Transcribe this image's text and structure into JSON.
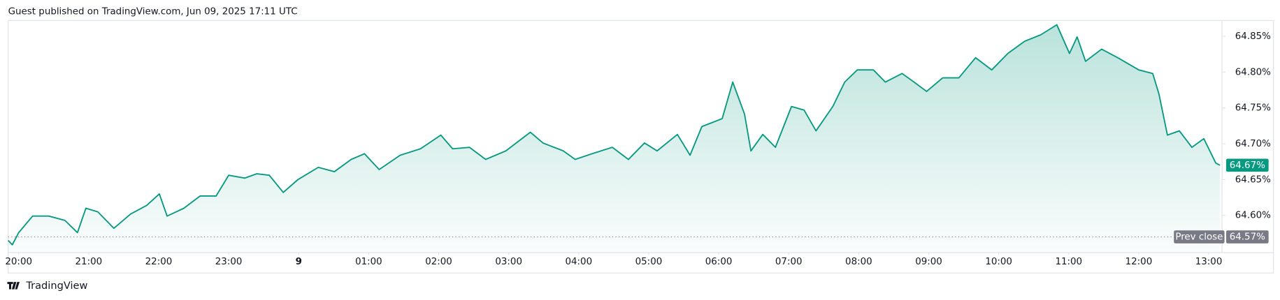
{
  "header": "Guest published on TradingView.com, Jun 09, 2025 17:11 UTC",
  "brand": "TradingView",
  "chart_data": {
    "type": "line",
    "series": [
      {
        "color": "#089981",
        "x": [
          -0.15,
          -0.09,
          0,
          0.2,
          0.43,
          0.66,
          0.84,
          0.96,
          1.13,
          1.36,
          1.6,
          1.83,
          2.01,
          2.12,
          2.36,
          2.59,
          2.82,
          3.0,
          3.23,
          3.4,
          3.58,
          3.78,
          3.99,
          4.28,
          4.51,
          4.75,
          4.94,
          5.15,
          5.45,
          5.74,
          6.03,
          6.2,
          6.44,
          6.67,
          6.96,
          7.31,
          7.49,
          7.78,
          7.95,
          8.19,
          8.48,
          8.71,
          8.94,
          9.12,
          9.41,
          9.59,
          9.76,
          10.05,
          10.2,
          10.37,
          10.46,
          10.63,
          10.81,
          11.04,
          11.22,
          11.39,
          11.63,
          11.8,
          11.98,
          12.21,
          12.38,
          12.62,
          12.79,
          12.97,
          13.2,
          13.43,
          13.67,
          13.9,
          14.13,
          14.37,
          14.6,
          14.83,
          15.01,
          15.12,
          15.24,
          15.47,
          15.7,
          16.0,
          16.2,
          16.29,
          16.41,
          16.58,
          16.76,
          16.93,
          17.1,
          17.16
        ],
        "values": [
          64.565,
          64.559,
          64.576,
          64.599,
          64.599,
          64.593,
          64.576,
          64.61,
          64.605,
          64.582,
          64.602,
          64.614,
          64.63,
          64.599,
          64.61,
          64.627,
          64.627,
          64.656,
          64.652,
          64.658,
          64.656,
          64.632,
          64.65,
          64.667,
          64.661,
          64.678,
          64.686,
          64.664,
          64.684,
          64.693,
          64.712,
          64.693,
          64.695,
          64.678,
          64.69,
          64.716,
          64.701,
          64.69,
          64.678,
          64.686,
          64.695,
          64.678,
          64.701,
          64.69,
          64.713,
          64.684,
          64.724,
          64.735,
          64.786,
          64.741,
          64.69,
          64.713,
          64.695,
          64.752,
          64.747,
          64.718,
          64.752,
          64.786,
          64.803,
          64.803,
          64.786,
          64.798,
          64.786,
          64.773,
          64.792,
          64.792,
          64.82,
          64.803,
          64.826,
          64.843,
          64.852,
          64.866,
          64.826,
          64.849,
          64.815,
          64.832,
          64.82,
          64.803,
          64.798,
          64.769,
          64.712,
          64.718,
          64.695,
          64.707,
          64.673,
          64.67
        ]
      }
    ],
    "xlim": [
      -0.15,
      17.19
    ],
    "xticks": [
      {
        "value": 0,
        "label": "20:00"
      },
      {
        "value": 1,
        "label": "21:00"
      },
      {
        "value": 2,
        "label": "22:00"
      },
      {
        "value": 3,
        "label": "23:00"
      },
      4,
      {
        "value": 5,
        "label": "01:00"
      },
      {
        "value": 6,
        "label": "02:00"
      },
      {
        "value": 7,
        "label": "03:00"
      },
      {
        "value": 8,
        "label": "04:00"
      },
      {
        "value": 9,
        "label": "05:00"
      },
      {
        "value": 10,
        "label": "06:00"
      },
      {
        "value": 11,
        "label": "07:00"
      },
      {
        "value": 12,
        "label": "08:00"
      },
      {
        "value": 13,
        "label": "09:00"
      },
      {
        "value": 14,
        "label": "10:00"
      },
      {
        "value": 15,
        "label": "11:00"
      },
      {
        "value": 16,
        "label": "12:00"
      },
      {
        "value": 17,
        "label": "13:00"
      }
    ],
    "day_tick_label": "9",
    "ylim": [
      64.548,
      64.872
    ],
    "yticks": [
      {
        "value": 64.6,
        "label": "64.60%"
      },
      {
        "value": 64.65,
        "label": "64.65%"
      },
      {
        "value": 64.7,
        "label": "64.70%"
      },
      {
        "value": 64.75,
        "label": "64.75%"
      },
      {
        "value": 64.8,
        "label": "64.80%"
      },
      {
        "value": 64.85,
        "label": "64.85%"
      }
    ],
    "last_value": {
      "value": 64.67,
      "label": "64.67%"
    },
    "prev_close": {
      "name": "Prev close",
      "value": 64.57,
      "label": "64.57%"
    }
  }
}
